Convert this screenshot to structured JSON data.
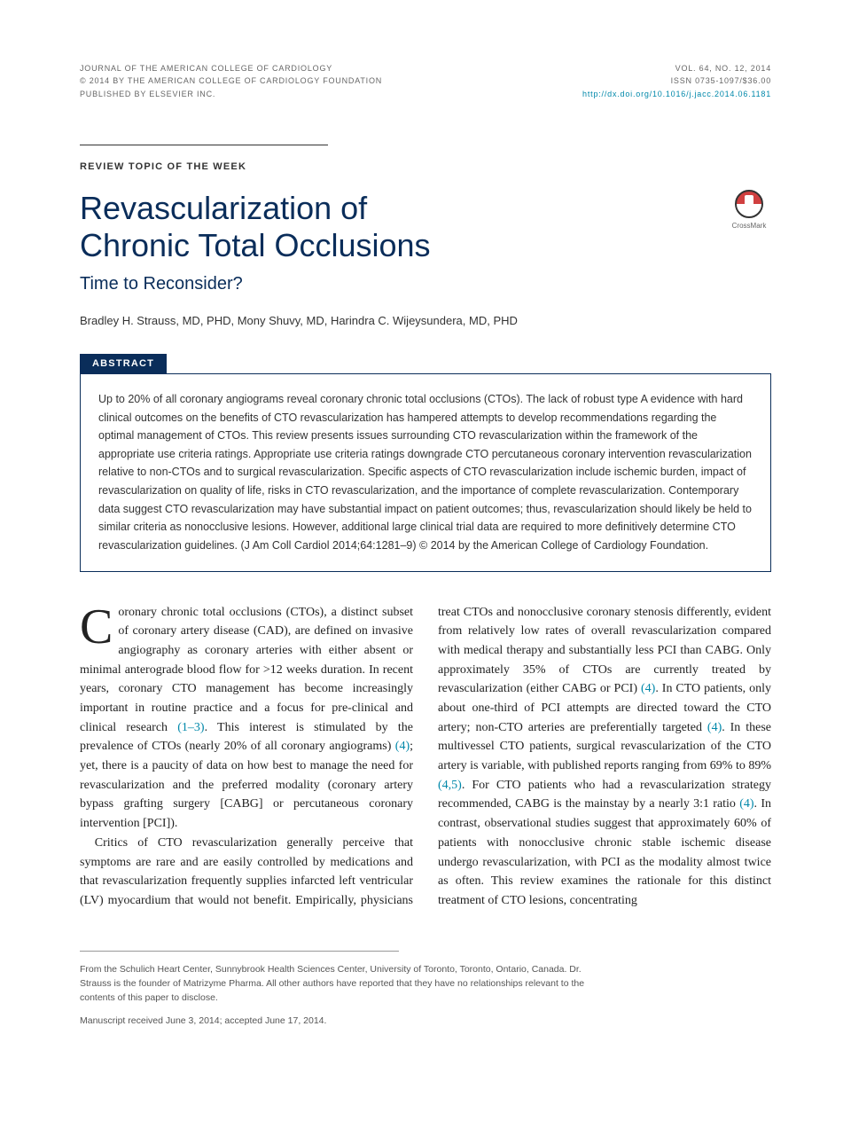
{
  "header": {
    "journal": "JOURNAL OF THE AMERICAN COLLEGE OF CARDIOLOGY",
    "copyright": "© 2014 BY THE AMERICAN COLLEGE OF CARDIOLOGY FOUNDATION",
    "publisher": "PUBLISHED BY ELSEVIER INC.",
    "issue": "VOL. 64, NO. 12, 2014",
    "issn": "ISSN 0735-1097/$36.00",
    "doi": "http://dx.doi.org/10.1016/j.jacc.2014.06.1181"
  },
  "article": {
    "section_label": "REVIEW TOPIC OF THE WEEK",
    "title_line1": "Revascularization of",
    "title_line2": "Chronic Total Occlusions",
    "subtitle": "Time to Reconsider?",
    "authors": "Bradley H. Strauss, MD, PHD, Mony Shuvy, MD, Harindra C. Wijeysundera, MD, PHD",
    "crossmark_label": "CrossMark"
  },
  "abstract": {
    "label": "ABSTRACT",
    "text": "Up to 20% of all coronary angiograms reveal coronary chronic total occlusions (CTOs). The lack of robust type A evidence with hard clinical outcomes on the benefits of CTO revascularization has hampered attempts to develop recommendations regarding the optimal management of CTOs. This review presents issues surrounding CTO revascularization within the framework of the appropriate use criteria ratings. Appropriate use criteria ratings downgrade CTO percutaneous coronary intervention revascularization relative to non-CTOs and to surgical revascularization. Specific aspects of CTO revascularization include ischemic burden, impact of revascularization on quality of life, risks in CTO revascularization, and the importance of complete revascularization. Contemporary data suggest CTO revascularization may have substantial impact on patient outcomes; thus, revascularization should likely be held to similar criteria as nonocclusive lesions. However, additional large clinical trial data are required to more definitively determine CTO revascularization guidelines. (J Am Coll Cardiol 2014;64:1281–9) © 2014 by the American College of Cardiology Foundation."
  },
  "body": {
    "p1_dropcap": "C",
    "p1_rest_a": "oronary chronic total occlusions (CTOs), a distinct subset of coronary artery disease (CAD), are defined on invasive angiography as coronary arteries with either absent or minimal anterograde blood flow for >12 weeks duration. In recent years, coronary CTO management has become increasingly important in routine practice and a focus for pre-clinical and clinical research ",
    "p1_ref1": "(1–3)",
    "p1_rest_b": ". This interest is stimulated by the prevalence of CTOs (nearly 20% of all coronary angiograms) ",
    "p1_ref2": "(4)",
    "p1_rest_c": "; yet, there is a paucity of data on how best to manage the need for revascularization and the preferred modality (coronary artery bypass grafting surgery [CABG] or percutaneous coronary intervention [PCI]).",
    "p2_a": "Critics of CTO revascularization generally perceive that symptoms are rare and are easily controlled by medications and that revascularization frequently supplies infarcted left ventricular (LV) myocardium that would not benefit. Empirically, physicians treat CTOs and nonocclusive coronary stenosis differently, evident from relatively low rates of overall revascularization compared with medical therapy and substantially less PCI than CABG. Only approximately 35% of CTOs are currently treated by revascularization (either CABG or PCI) ",
    "p2_ref1": "(4)",
    "p2_b": ". In CTO patients, only about one-third of PCI attempts are directed toward the CTO artery; non-CTO arteries are preferentially targeted ",
    "p2_ref2": "(4)",
    "p2_c": ". In these multivessel CTO patients, surgical revascularization of the CTO artery is variable, with published reports ranging from 69% to 89% ",
    "p2_ref3": "(4,5)",
    "p2_d": ". For CTO patients who had a revascularization strategy recommended, CABG is the mainstay by a nearly 3:1 ratio ",
    "p2_ref4": "(4)",
    "p2_e": ". In contrast, observational studies suggest that approximately 60% of patients with nonocclusive chronic stable ischemic disease undergo revascularization, with PCI as the modality almost twice as often. This review examines the rationale for this distinct treatment of CTO lesions, concentrating"
  },
  "footer": {
    "affiliation": "From the Schulich Heart Center, Sunnybrook Health Sciences Center, University of Toronto, Toronto, Ontario, Canada. Dr. Strauss is the founder of Matrizyme Pharma. All other authors have reported that they have no relationships relevant to the contents of this paper to disclose.",
    "dates": "Manuscript received June 3, 2014; accepted June 17, 2014."
  },
  "colors": {
    "primary_blue": "#0a2d5a",
    "link_teal": "#0088aa",
    "text": "#333333",
    "body_text": "#222222",
    "footer_text": "#555555",
    "rule": "#999999"
  },
  "typography": {
    "title_fontsize": 36,
    "subtitle_fontsize": 20,
    "body_fontsize": 14,
    "abstract_fontsize": 12.5,
    "header_meta_fontsize": 9,
    "footer_fontsize": 10.5
  }
}
